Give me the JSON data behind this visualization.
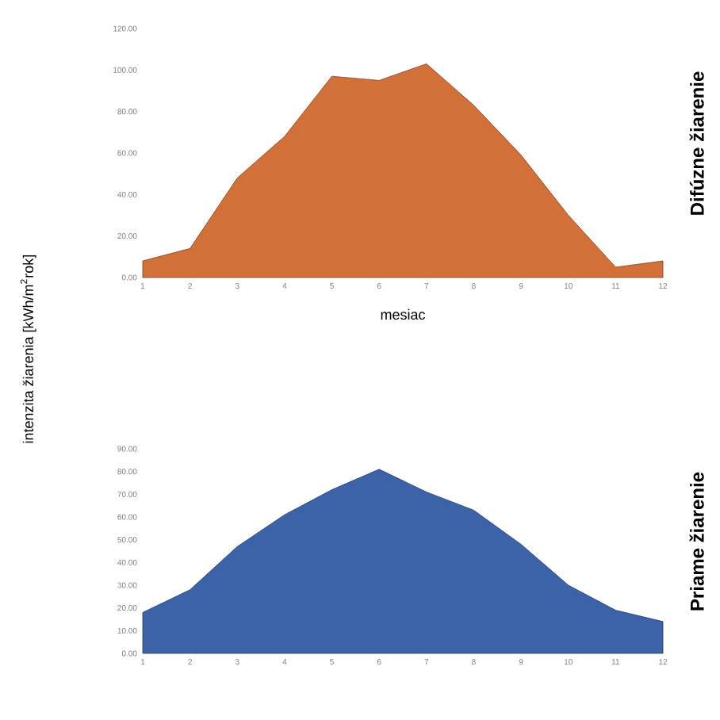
{
  "chart_data": [
    {
      "type": "area",
      "title": "Difúzne žiarenie",
      "xlabel": "mesiac",
      "ylabel": "intenzita žiarenia [kWh/m$^{2}$rok]",
      "categories": [
        "1",
        "2",
        "3",
        "4",
        "5",
        "6",
        "7",
        "8",
        "9",
        "10",
        "11",
        "12"
      ],
      "series": [
        {
          "color": "#d2703a",
          "values": [
            8,
            14,
            48,
            68,
            97,
            95,
            103,
            83,
            59,
            30,
            5,
            8
          ]
        }
      ],
      "ylim": [
        0,
        120
      ],
      "yticks": [
        {
          "value": 0,
          "label": "0.00"
        },
        {
          "value": 20,
          "label": "20.00"
        },
        {
          "value": 40,
          "label": "40.00"
        },
        {
          "value": 60,
          "label": "60.00"
        },
        {
          "value": 80,
          "label": "80.00"
        },
        {
          "value": 100,
          "label": "100.00"
        },
        {
          "value": 120,
          "label": "120.00"
        }
      ]
    },
    {
      "type": "area",
      "title": "Priame žiarenie",
      "categories": [
        "1",
        "2",
        "3",
        "4",
        "5",
        "6",
        "7",
        "8",
        "9",
        "10",
        "11",
        "12"
      ],
      "series": [
        {
          "color": "#3c62a8",
          "values": [
            18,
            28,
            47,
            61,
            72,
            81,
            71,
            63,
            48,
            30,
            19,
            14
          ]
        }
      ],
      "ylim": [
        0,
        90
      ],
      "yticks": [
        {
          "value": 0,
          "label": "0.00"
        },
        {
          "value": 10,
          "label": "10.00"
        },
        {
          "value": 20,
          "label": "20.00"
        },
        {
          "value": 30,
          "label": "30.00"
        },
        {
          "value": 40,
          "label": "40.00"
        },
        {
          "value": 50,
          "label": "50.00"
        },
        {
          "value": 60,
          "label": "60.00"
        },
        {
          "value": 70,
          "label": "70.00"
        },
        {
          "value": 80,
          "label": "80.00"
        },
        {
          "value": 90,
          "label": "90.00"
        }
      ]
    }
  ]
}
